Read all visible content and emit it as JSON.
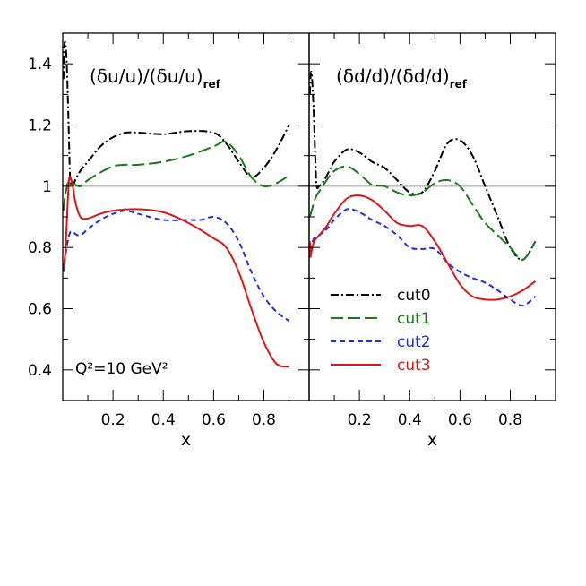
{
  "chart_data": [
    {
      "type": "line",
      "panel": "left",
      "title_main": "(δu/u)/(δu/u)",
      "title_sub": "ref",
      "annotation": "Q²=10 GeV²",
      "xlabel": "x",
      "ylabel": "",
      "xlim": [
        0.0,
        0.98
      ],
      "ylim": [
        0.3,
        1.5
      ],
      "xticks_major": [
        0.2,
        0.4,
        0.6,
        0.8
      ],
      "xticks_minor": [
        0.1,
        0.3,
        0.5,
        0.7,
        0.9
      ],
      "yticks_major": [
        0.4,
        0.6,
        0.8,
        1,
        1.2,
        1.4
      ],
      "yticks_minor": [
        0.5,
        0.7,
        0.9,
        1.1,
        1.3
      ],
      "xtick_labels": [
        "0.2",
        "0.4",
        "0.6",
        "0.8"
      ],
      "ytick_labels": [
        "0.4",
        "0.6",
        "0.8",
        "1",
        "1.2",
        "1.4"
      ],
      "reference_line": 1,
      "grid": false,
      "series": [
        {
          "name": "cut0",
          "color": "#000000",
          "x": [
            0.003,
            0.006,
            0.01,
            0.015,
            0.02,
            0.025,
            0.03,
            0.04,
            0.05,
            0.07,
            0.1,
            0.15,
            0.2,
            0.25,
            0.3,
            0.4,
            0.5,
            0.6,
            0.65,
            0.7,
            0.75,
            0.8,
            0.85,
            0.9
          ],
          "values": [
            1.35,
            1.45,
            1.47,
            1.42,
            1.3,
            1.15,
            1.02,
            1.0,
            1.02,
            1.05,
            1.08,
            1.13,
            1.16,
            1.175,
            1.175,
            1.17,
            1.18,
            1.175,
            1.14,
            1.08,
            1.03,
            1.06,
            1.12,
            1.2
          ]
        },
        {
          "name": "cut1",
          "color": "#1a7a1a",
          "x": [
            0.003,
            0.01,
            0.02,
            0.03,
            0.04,
            0.05,
            0.07,
            0.1,
            0.15,
            0.2,
            0.25,
            0.3,
            0.4,
            0.5,
            0.6,
            0.65,
            0.7,
            0.75,
            0.8,
            0.85,
            0.9
          ],
          "values": [
            0.92,
            0.97,
            1.01,
            1.02,
            1.01,
            1.005,
            1.0,
            1.02,
            1.045,
            1.065,
            1.07,
            1.07,
            1.08,
            1.1,
            1.13,
            1.145,
            1.1,
            1.03,
            1.0,
            1.01,
            1.035
          ]
        },
        {
          "name": "cut2",
          "color": "#1f2fe0",
          "x": [
            0.003,
            0.01,
            0.02,
            0.03,
            0.04,
            0.06,
            0.08,
            0.1,
            0.15,
            0.2,
            0.25,
            0.3,
            0.4,
            0.5,
            0.55,
            0.6,
            0.65,
            0.7,
            0.75,
            0.8,
            0.85,
            0.9
          ],
          "values": [
            0.72,
            0.77,
            0.82,
            0.85,
            0.85,
            0.84,
            0.845,
            0.86,
            0.89,
            0.91,
            0.92,
            0.91,
            0.89,
            0.89,
            0.89,
            0.9,
            0.88,
            0.82,
            0.72,
            0.64,
            0.59,
            0.56
          ]
        },
        {
          "name": "cut3",
          "color": "#e01515",
          "x": [
            0.003,
            0.01,
            0.015,
            0.02,
            0.025,
            0.03,
            0.04,
            0.05,
            0.07,
            0.1,
            0.15,
            0.2,
            0.3,
            0.4,
            0.5,
            0.6,
            0.65,
            0.7,
            0.75,
            0.8,
            0.85,
            0.9
          ],
          "values": [
            0.73,
            0.78,
            0.86,
            0.95,
            1.02,
            1.03,
            1.0,
            0.95,
            0.9,
            0.895,
            0.91,
            0.92,
            0.925,
            0.915,
            0.88,
            0.83,
            0.8,
            0.72,
            0.6,
            0.49,
            0.42,
            0.41
          ]
        }
      ]
    },
    {
      "type": "line",
      "panel": "right",
      "title_main": "(δd/d)/(δd/d)",
      "title_sub": "ref",
      "xlabel": "x",
      "ylabel": "",
      "xlim": [
        0.0,
        0.98
      ],
      "ylim": [
        0.3,
        1.5
      ],
      "xticks_major": [
        0.2,
        0.4,
        0.6,
        0.8
      ],
      "xticks_minor": [
        0.1,
        0.3,
        0.5,
        0.7,
        0.9
      ],
      "xtick_labels": [
        "0.2",
        "0.4",
        "0.6",
        "0.8"
      ],
      "reference_line": 1,
      "grid": false,
      "legend": {
        "placement": "lower-left",
        "entries": [
          {
            "label": "cut0",
            "color": "#000000"
          },
          {
            "label": "cut1",
            "color": "#1a7a1a"
          },
          {
            "label": "cut2",
            "color": "#1f2fe0"
          },
          {
            "label": "cut3",
            "color": "#e01515"
          }
        ]
      },
      "series": [
        {
          "name": "cut0",
          "color": "#000000",
          "x": [
            0.003,
            0.006,
            0.01,
            0.015,
            0.02,
            0.025,
            0.03,
            0.04,
            0.06,
            0.08,
            0.1,
            0.15,
            0.2,
            0.25,
            0.3,
            0.35,
            0.4,
            0.45,
            0.5,
            0.55,
            0.6,
            0.65,
            0.7,
            0.75,
            0.8,
            0.85,
            0.9
          ],
          "values": [
            1.3,
            1.36,
            1.37,
            1.3,
            1.2,
            1.08,
            1.0,
            1.0,
            1.02,
            1.05,
            1.08,
            1.12,
            1.11,
            1.08,
            1.06,
            1.02,
            0.98,
            0.98,
            1.05,
            1.14,
            1.15,
            1.1,
            1.0,
            0.9,
            0.8,
            0.76,
            0.82
          ]
        },
        {
          "name": "cut1",
          "color": "#1a7a1a",
          "x": [
            0.003,
            0.01,
            0.02,
            0.03,
            0.05,
            0.07,
            0.1,
            0.15,
            0.2,
            0.25,
            0.3,
            0.35,
            0.4,
            0.45,
            0.5,
            0.55,
            0.6,
            0.65,
            0.7,
            0.75,
            0.8,
            0.85,
            0.9
          ],
          "values": [
            0.9,
            0.92,
            0.95,
            0.97,
            0.995,
            1.02,
            1.05,
            1.065,
            1.04,
            1.005,
            1.0,
            0.98,
            0.97,
            0.98,
            1.01,
            1.02,
            1.0,
            0.94,
            0.88,
            0.84,
            0.8,
            0.76,
            0.82
          ]
        },
        {
          "name": "cut2",
          "color": "#1f2fe0",
          "x": [
            0.003,
            0.01,
            0.02,
            0.04,
            0.07,
            0.1,
            0.15,
            0.2,
            0.25,
            0.3,
            0.35,
            0.4,
            0.45,
            0.5,
            0.55,
            0.6,
            0.65,
            0.7,
            0.75,
            0.8,
            0.85,
            0.9
          ],
          "values": [
            0.79,
            0.81,
            0.83,
            0.84,
            0.86,
            0.89,
            0.925,
            0.915,
            0.89,
            0.87,
            0.84,
            0.8,
            0.795,
            0.795,
            0.75,
            0.72,
            0.7,
            0.685,
            0.66,
            0.63,
            0.61,
            0.64
          ]
        },
        {
          "name": "cut3",
          "color": "#e01515",
          "x": [
            0.003,
            0.005,
            0.01,
            0.02,
            0.04,
            0.07,
            0.1,
            0.15,
            0.2,
            0.25,
            0.3,
            0.35,
            0.4,
            0.45,
            0.5,
            0.55,
            0.6,
            0.65,
            0.7,
            0.75,
            0.8,
            0.85,
            0.9
          ],
          "values": [
            0.82,
            0.77,
            0.79,
            0.82,
            0.84,
            0.87,
            0.91,
            0.96,
            0.97,
            0.955,
            0.92,
            0.88,
            0.87,
            0.87,
            0.82,
            0.75,
            0.68,
            0.64,
            0.63,
            0.63,
            0.64,
            0.66,
            0.69
          ]
        }
      ]
    }
  ]
}
